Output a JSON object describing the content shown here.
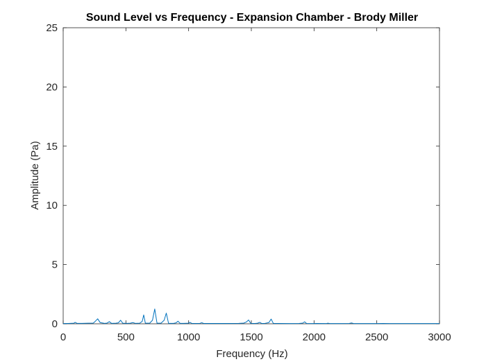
{
  "chart_data": {
    "type": "line",
    "title": "Sound Level vs Frequency - Expansion Chamber - Brody Miller",
    "xlabel": "Frequency (Hz)",
    "ylabel": "Amplitude (Pa)",
    "xlim": [
      0,
      3000
    ],
    "ylim": [
      0,
      25
    ],
    "xticks": [
      0,
      500,
      1000,
      1500,
      2000,
      2500,
      3000
    ],
    "yticks": [
      0,
      5,
      10,
      15,
      20,
      25
    ],
    "grid": false,
    "line_color": "#0072BD",
    "series": [
      {
        "x": [
          0,
          40,
          85,
          95,
          110,
          150,
          200,
          240,
          255,
          275,
          295,
          330,
          350,
          368,
          385,
          420,
          440,
          458,
          475,
          510,
          535,
          555,
          575,
          610,
          630,
          642,
          655,
          690,
          712,
          730,
          748,
          780,
          805,
          822,
          840,
          880,
          900,
          915,
          932,
          960,
          1000,
          1010,
          1025,
          1060,
          1090,
          1105,
          1120,
          1160,
          1200,
          1300,
          1400,
          1440,
          1460,
          1478,
          1495,
          1530,
          1550,
          1567,
          1582,
          1610,
          1640,
          1658,
          1675,
          1710,
          1800,
          1880,
          1910,
          1925,
          1940,
          1990,
          2020,
          2100,
          2110,
          2125,
          2200,
          2280,
          2300,
          2315,
          2400,
          2500,
          2550,
          2600,
          2700,
          2800,
          2900,
          3000
        ],
        "y": [
          0.02,
          0.03,
          0.05,
          0.12,
          0.04,
          0.04,
          0.05,
          0.06,
          0.2,
          0.42,
          0.1,
          0.04,
          0.06,
          0.18,
          0.04,
          0.05,
          0.08,
          0.3,
          0.05,
          0.04,
          0.05,
          0.1,
          0.04,
          0.05,
          0.2,
          0.75,
          0.05,
          0.05,
          0.3,
          1.25,
          0.05,
          0.05,
          0.3,
          0.9,
          0.04,
          0.04,
          0.08,
          0.22,
          0.04,
          0.04,
          0.05,
          0.12,
          0.04,
          0.03,
          0.04,
          0.09,
          0.03,
          0.03,
          0.03,
          0.03,
          0.04,
          0.06,
          0.15,
          0.32,
          0.04,
          0.03,
          0.05,
          0.12,
          0.03,
          0.04,
          0.1,
          0.4,
          0.04,
          0.03,
          0.02,
          0.03,
          0.06,
          0.17,
          0.03,
          0.02,
          0.03,
          0.02,
          0.05,
          0.02,
          0.02,
          0.03,
          0.07,
          0.02,
          0.02,
          0.02,
          0.03,
          0.02,
          0.02,
          0.02,
          0.02,
          0.02
        ]
      }
    ]
  }
}
